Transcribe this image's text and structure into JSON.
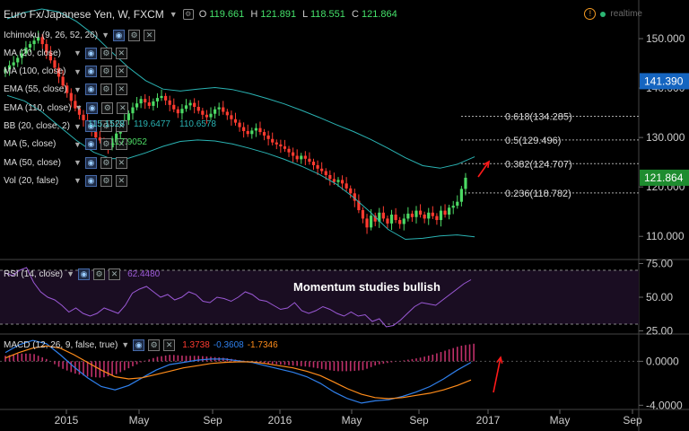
{
  "header": {
    "title": "Euro Fx/Japanese Yen, W, FXCM",
    "ohlc": [
      {
        "k": "O",
        "v": "119.661"
      },
      {
        "k": "H",
        "v": "121.891"
      },
      {
        "k": "L",
        "v": "118.551"
      },
      {
        "k": "C",
        "v": "121.864"
      }
    ],
    "realtime_label": "realtime"
  },
  "indicators": [
    {
      "label": "Ichimoku (9, 26, 52, 26)"
    },
    {
      "label": "MA (20, close)"
    },
    {
      "label": "MA (100, close)"
    },
    {
      "label": "EMA (55, close)"
    },
    {
      "label": "EMA (110, close)"
    },
    {
      "label": "BB (20, close, 2)"
    },
    {
      "label": "MA (5, close)"
    },
    {
      "label": "MA (50, close)"
    },
    {
      "label": "Vol (20, false)"
    }
  ],
  "overlay_values": {
    "bb_basis": "115.1528",
    "bb_upper": "119.6477",
    "bb_lower": "110.6578",
    "ma5": "117.9052"
  },
  "annotation": "Momentum studies bullish",
  "colors": {
    "up": "#4cd964",
    "down": "#ff3b30",
    "bb": "#2ab3b3",
    "rsi": "#9b59d6",
    "macd": "#2f80ed",
    "signal": "#ff8c1a",
    "arrow": "#ff1a1a",
    "price_badge": "#1565c0",
    "close_badge": "#1e8c2f"
  },
  "chart_data": [
    {
      "type": "candlestick",
      "title": "Euro Fx/Japanese Yen, W, FXCM",
      "x_ticks": [
        "2015",
        "May",
        "Sep",
        "2016",
        "May",
        "Sep",
        "2017",
        "May",
        "Sep"
      ],
      "y_ticks": [
        110,
        120,
        130,
        140,
        150
      ],
      "ylim": [
        105.5,
        156
      ],
      "badges": [
        {
          "value": 141.39,
          "label": "141.390"
        },
        {
          "value": 121.864,
          "label": "121.864"
        }
      ],
      "fibonacci": [
        {
          "label": "0.618(134.285)",
          "value": 134.285
        },
        {
          "label": "0.5(129.496)",
          "value": 129.496
        },
        {
          "label": "0.382(124.707)",
          "value": 124.707
        },
        {
          "label": "0.236(118.782)",
          "value": 118.782
        }
      ],
      "series": [
        {
          "name": "EUR/JPY weekly close",
          "values": [
            143.8,
            144.6,
            145.2,
            146.1,
            147.0,
            148.2,
            148.9,
            149.6,
            150.3,
            148.9,
            147.2,
            145.6,
            144.1,
            142.3,
            140.5,
            139.0,
            137.4,
            135.9,
            134.6,
            133.5,
            132.5,
            131.2,
            130.0,
            129.4,
            128.7,
            128.0,
            129.0,
            130.8,
            132.0,
            133.5,
            134.9,
            136.1,
            136.9,
            137.8,
            137.1,
            136.4,
            137.3,
            138.0,
            138.4,
            137.5,
            136.6,
            135.7,
            134.9,
            135.8,
            136.5,
            137.0,
            136.2,
            135.4,
            134.6,
            134.1,
            134.8,
            135.7,
            136.1,
            135.2,
            134.5,
            133.7,
            133.0,
            132.1,
            131.3,
            130.7,
            131.4,
            131.9,
            131.1,
            130.4,
            129.7,
            129.0,
            128.6,
            128.2,
            127.7,
            127.0,
            126.3,
            125.6,
            126.3,
            125.7,
            125.1,
            124.4,
            123.7,
            123.2,
            122.4,
            121.6,
            121.0,
            121.4,
            120.7,
            119.7,
            118.7,
            117.2,
            115.3,
            113.6,
            111.8,
            114.2,
            113.0,
            114.8,
            113.6,
            112.6,
            114.4,
            113.3,
            112.5,
            113.6,
            114.6,
            113.9,
            115.2,
            114.4,
            113.6,
            114.8,
            114.1,
            113.3,
            115.2,
            114.4,
            115.8,
            116.2,
            117.0,
            119.6,
            121.86
          ]
        },
        {
          "name": "BB upper",
          "values": [
            154,
            155.3,
            156,
            155.4,
            153.5,
            150.8,
            147.4,
            144.2,
            141.5,
            139.8,
            139.4,
            139.8,
            140.1,
            139.7,
            138.9,
            137.9,
            136.8,
            135.5,
            134.1,
            132.6,
            131.2,
            129.6,
            127.8,
            125.9,
            124.3,
            123.8,
            124.6,
            126.1
          ]
        },
        {
          "name": "BB lower",
          "values": [
            138.5,
            137.4,
            135.2,
            132.3,
            129.4,
            127,
            125.7,
            125.8,
            126.9,
            128.2,
            129.2,
            129.5,
            129.3,
            128.7,
            127.8,
            126.8,
            125.6,
            124.2,
            122.6,
            120.6,
            117.9,
            114.8,
            111.4,
            109.4,
            109.6,
            110.1,
            110.3,
            109.9
          ]
        }
      ]
    },
    {
      "type": "line",
      "title": "RSI (14, close)",
      "value_label": "62.4480",
      "y_ticks": [
        25,
        50,
        75
      ],
      "levels": [
        30,
        70
      ],
      "ylim": [
        24,
        76
      ],
      "series": [
        {
          "name": "RSI",
          "values": [
            68,
            66,
            70,
            72,
            61,
            54,
            50,
            48,
            44,
            39,
            42,
            38,
            36,
            38,
            42,
            40,
            38,
            44,
            53,
            56,
            58,
            54,
            50,
            52,
            48,
            50,
            54,
            52,
            47,
            46,
            50,
            49,
            47,
            50,
            54,
            52,
            48,
            47,
            44,
            41,
            42,
            46,
            40,
            38,
            40,
            43,
            41,
            38,
            36,
            39,
            36,
            37,
            32,
            34,
            28,
            29,
            33,
            38,
            43,
            46,
            45,
            44,
            48,
            52,
            56,
            60,
            63
          ]
        }
      ]
    },
    {
      "type": "line",
      "title": "MACD (12, 26, 9, false, true)",
      "value_labels": [
        "1.3738",
        "-0.3608",
        "-1.7346"
      ],
      "y_ticks": [
        0,
        -4
      ],
      "ylim": [
        -4.3,
        2.4
      ],
      "series": [
        {
          "name": "MACD",
          "values": [
            0.8,
            1.5,
            1.9,
            1.6,
            0.6,
            -0.5,
            -1.5,
            -2.3,
            -2.6,
            -2.2,
            -1.5,
            -0.8,
            -0.3,
            -0.1,
            0.1,
            0.2,
            0.2,
            0.05,
            -0.1,
            -0.4,
            -0.7,
            -1.0,
            -1.4,
            -2.0,
            -2.8,
            -3.4,
            -3.8,
            -3.6,
            -3.5,
            -3.2,
            -2.8,
            -2.3,
            -1.6,
            -0.8,
            -0.1
          ]
        },
        {
          "name": "Signal",
          "values": [
            0.3,
            0.8,
            1.2,
            1.4,
            1.2,
            0.6,
            -0.1,
            -0.8,
            -1.4,
            -1.6,
            -1.5,
            -1.2,
            -0.9,
            -0.6,
            -0.4,
            -0.2,
            -0.1,
            -0.05,
            -0.05,
            -0.2,
            -0.4,
            -0.6,
            -0.9,
            -1.3,
            -1.9,
            -2.5,
            -3.0,
            -3.3,
            -3.4,
            -3.3,
            -3.1,
            -2.9,
            -2.6,
            -2.2,
            -1.7
          ]
        }
      ]
    }
  ]
}
